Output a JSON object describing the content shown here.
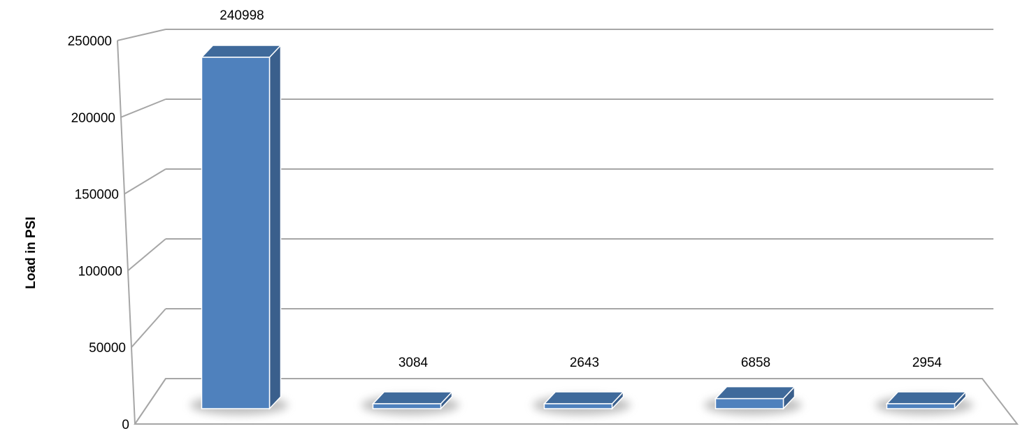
{
  "chart_data": {
    "type": "bar",
    "title": "",
    "xlabel": "",
    "ylabel": "Load in PSI",
    "categories": [
      "",
      "",
      "",
      "",
      ""
    ],
    "values": [
      240998,
      3084,
      2643,
      6858,
      2954
    ],
    "data_labels": [
      "240998",
      "3084",
      "2643",
      "6858",
      "2954"
    ],
    "ylim": [
      0,
      250000
    ],
    "yticks": [
      0,
      50000,
      100000,
      150000,
      200000,
      250000
    ],
    "ytick_labels": [
      "0",
      "50000",
      "100000",
      "150000",
      "200000",
      "250000"
    ],
    "grid": true,
    "legend": "none",
    "style": "3d-column",
    "colors": {
      "bar_front": "#4f81bd",
      "bar_side": "#3a5f8c",
      "bar_top": "#3f6a9b",
      "grid": "#a6a6a6",
      "shadow": "#8c8c8c"
    }
  }
}
